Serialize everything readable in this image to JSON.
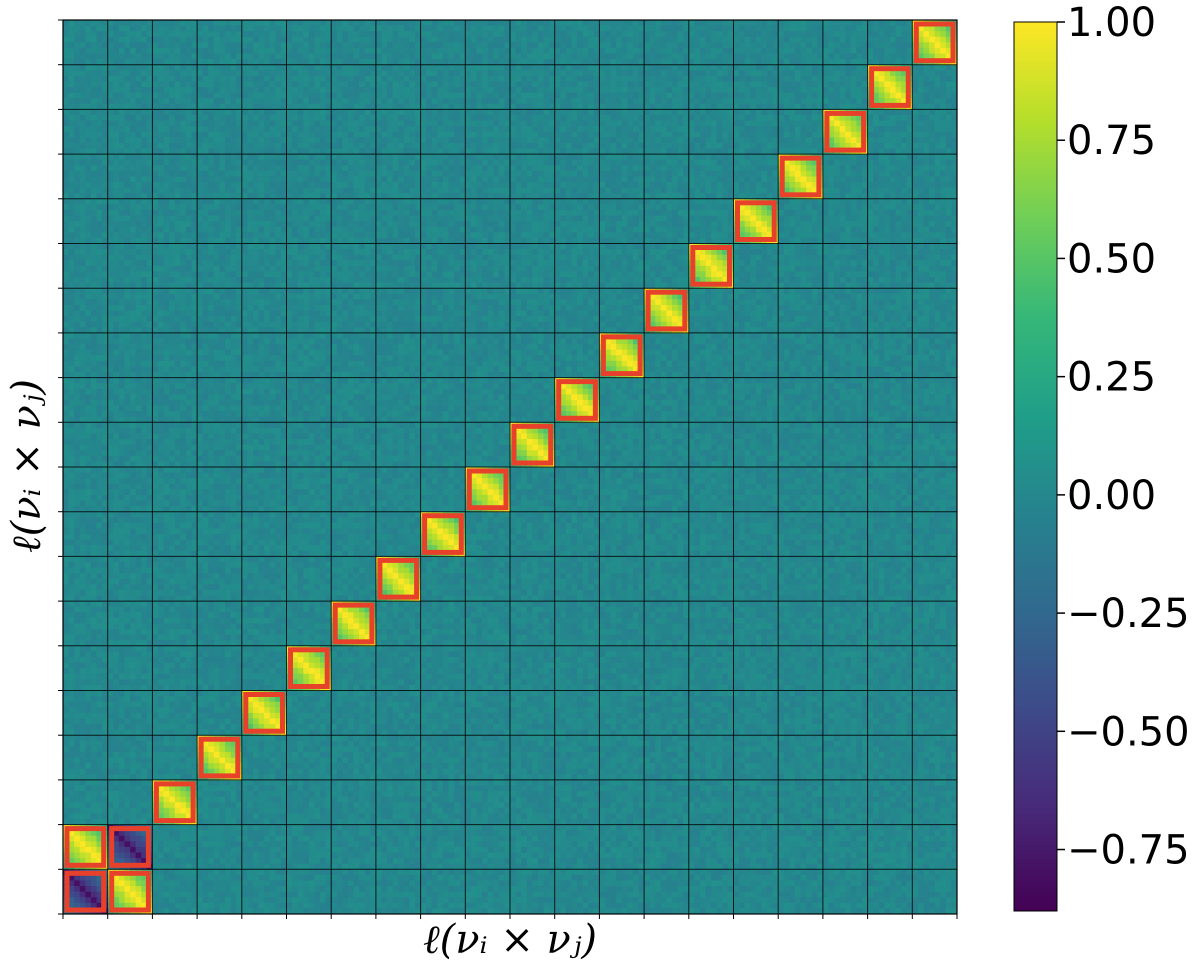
{
  "chart_data": {
    "type": "heatmap",
    "title": "",
    "xlabel": "ℓ(νᵢ × νⱼ)",
    "ylabel": "ℓ(νᵢ × νⱼ)",
    "grid": true,
    "n_blocks": 20,
    "colormap": "viridis",
    "colormap_stops": [
      "#440154",
      "#482878",
      "#3e4989",
      "#31688e",
      "#26828e",
      "#1f9e89",
      "#35b779",
      "#6ece58",
      "#b5de2b",
      "#fde725"
    ],
    "colorbar": {
      "min": -0.88,
      "max": 1.0,
      "ticks": [
        1.0,
        0.75,
        0.5,
        0.25,
        0.0,
        -0.25,
        -0.5,
        -0.75
      ],
      "tick_labels": [
        "1.00",
        "0.75",
        "0.50",
        "0.25",
        "0.00",
        "−0.25",
        "−0.50",
        "−0.75"
      ]
    },
    "off_diagonal_value": 0.0,
    "diagonal_block_value_range": [
      0.3,
      1.0
    ],
    "anticorrelated_blocks": [
      [
        0,
        0
      ],
      [
        1,
        1
      ]
    ],
    "anticorrelated_block_value_range": [
      -0.8,
      -0.1
    ],
    "highlight_color": "#e8412b",
    "highlighted_blocks": [
      [
        0,
        0
      ],
      [
        0,
        1
      ],
      [
        1,
        0
      ],
      [
        1,
        1
      ],
      [
        2,
        2
      ],
      [
        3,
        3
      ],
      [
        4,
        4
      ],
      [
        5,
        5
      ],
      [
        6,
        6
      ],
      [
        7,
        7
      ],
      [
        8,
        8
      ],
      [
        9,
        9
      ],
      [
        10,
        10
      ],
      [
        11,
        11
      ],
      [
        12,
        12
      ],
      [
        13,
        13
      ],
      [
        14,
        14
      ],
      [
        15,
        15
      ],
      [
        16,
        16
      ],
      [
        17,
        17
      ],
      [
        18,
        18
      ],
      [
        19,
        19
      ]
    ]
  }
}
